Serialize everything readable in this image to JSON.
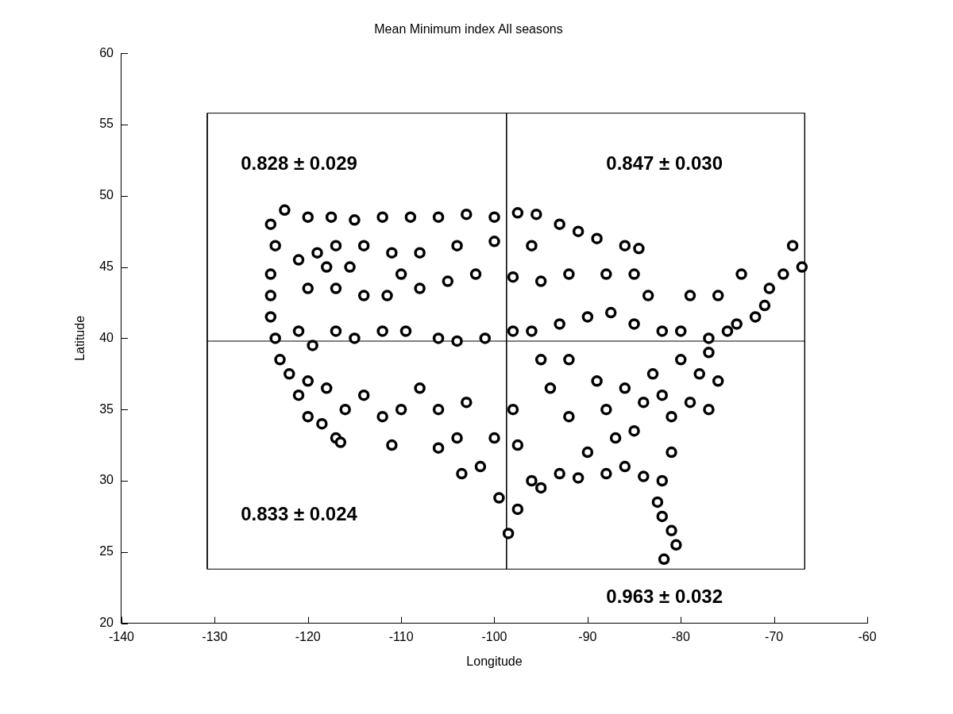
{
  "chart_data": {
    "type": "scatter",
    "title": "Mean Minimum index All seasons",
    "xlabel": "Longitude",
    "ylabel": "Latitude",
    "xlim": [
      -140,
      -60
    ],
    "ylim": [
      20,
      60
    ],
    "xticks": [
      -140,
      -130,
      -120,
      -110,
      -100,
      -90,
      -80,
      -70,
      -60
    ],
    "yticks": [
      20,
      25,
      30,
      35,
      40,
      45,
      50,
      55,
      60
    ],
    "grid": false,
    "annotations": [
      "0.828 ± 0.029",
      "0.847 ± 0.030",
      "0.833 ± 0.024",
      "0.963 ± 0.032"
    ],
    "series": [
      {
        "type": "scatter",
        "marker": "circle",
        "color": "#000000",
        "x": [
          -124,
          -123.5,
          -124,
          -124,
          -124,
          -123.5,
          -123,
          -122,
          -121,
          -120,
          -118.5,
          -117,
          -116.5,
          -122.5,
          -120,
          -117.5,
          -115,
          -112,
          -109,
          -106,
          -103,
          -100,
          -97.5,
          -95.5,
          -93,
          -91,
          -89,
          -86,
          -84.5,
          -121,
          -119,
          -117,
          -114,
          -111,
          -108,
          -104,
          -100,
          -96,
          -120,
          -117,
          -114,
          -111.5,
          -108,
          -105,
          -102,
          -98,
          -95,
          -92,
          -88,
          -85,
          -83.5,
          -121,
          -119.5,
          -117,
          -115,
          -112,
          -109.5,
          -106,
          -104,
          -101,
          -98,
          -96,
          -93,
          -90,
          -87.5,
          -85,
          -82,
          -80,
          -77,
          -75,
          -74,
          -72,
          -71,
          -70.5,
          -69,
          -68,
          -67,
          -73.5,
          -76,
          -79,
          -120,
          -118,
          -116,
          -114,
          -112,
          -111,
          -110,
          -108,
          -106,
          -106,
          -104,
          -103,
          -101.5,
          -103.5,
          -100,
          -98,
          -97.5,
          -99.5,
          -98.5,
          -97.5,
          -96,
          -95,
          -93,
          -91,
          -90,
          -92,
          -94,
          -95,
          -92,
          -89,
          -88,
          -87,
          -88,
          -86,
          -84,
          -85,
          -84,
          -86,
          -83,
          -82,
          -81,
          -79,
          -77,
          -78,
          -76,
          -77,
          -80,
          -81,
          -82,
          -82.5,
          -82,
          -81,
          -80.5,
          -81.8,
          -118,
          -115.5,
          -110
        ],
        "values": [
          48,
          46.5,
          44.5,
          43,
          41.5,
          40,
          38.5,
          37.5,
          36,
          34.5,
          34,
          33,
          32.7,
          49,
          48.5,
          48.5,
          48.3,
          48.5,
          48.5,
          48.5,
          48.7,
          48.5,
          48.8,
          48.7,
          48,
          47.5,
          47,
          46.5,
          46.3,
          45.5,
          46,
          46.5,
          46.5,
          46,
          46,
          46.5,
          46.8,
          46.5,
          43.5,
          43.5,
          43,
          43,
          43.5,
          44,
          44.5,
          44.3,
          44,
          44.5,
          44.5,
          44.5,
          43,
          40.5,
          39.5,
          40.5,
          40,
          40.5,
          40.5,
          40,
          39.8,
          40,
          40.5,
          40.5,
          41,
          41.5,
          41.8,
          41,
          40.5,
          40.5,
          40,
          40.5,
          41,
          41.5,
          42.3,
          43.5,
          44.5,
          46.5,
          45,
          44.5,
          43,
          43,
          37,
          36.5,
          35,
          36,
          34.5,
          32.5,
          35,
          36.5,
          35,
          32.3,
          33,
          35.5,
          31,
          30.5,
          33,
          35,
          32.5,
          28.8,
          26.3,
          28,
          30,
          29.5,
          30.5,
          30.2,
          32,
          34.5,
          36.5,
          38.5,
          38.5,
          37,
          35,
          33,
          30.5,
          31,
          30.3,
          33.5,
          35.5,
          36.5,
          37.5,
          36,
          34.5,
          35.5,
          35,
          37.5,
          37,
          39,
          38.5,
          32,
          30,
          28.5,
          27.5,
          26.5,
          25.5,
          24.5,
          45,
          45,
          44.5
        ]
      },
      {
        "type": "line",
        "marker": "none",
        "color": "#000000",
        "x": [
          -130.8,
          -66.7
        ],
        "values": [
          55.8,
          55.8
        ]
      },
      {
        "type": "line",
        "marker": "none",
        "color": "#000000",
        "x": [
          -130.8,
          -66.7
        ],
        "values": [
          23.8,
          23.8
        ]
      },
      {
        "type": "line",
        "marker": "none",
        "color": "#000000",
        "x": [
          -130.8,
          -130.8
        ],
        "values": [
          55.8,
          23.8
        ]
      },
      {
        "type": "line",
        "marker": "none",
        "color": "#000000",
        "x": [
          -66.7,
          -66.7
        ],
        "values": [
          55.8,
          23.8
        ]
      },
      {
        "type": "line",
        "marker": "none",
        "color": "#000000",
        "x": [
          -98.7,
          -98.7
        ],
        "values": [
          55.8,
          23.8
        ]
      },
      {
        "type": "line",
        "marker": "none",
        "color": "#000000",
        "x": [
          -130.8,
          -66.7
        ],
        "values": [
          39.8,
          39.8
        ]
      }
    ]
  }
}
